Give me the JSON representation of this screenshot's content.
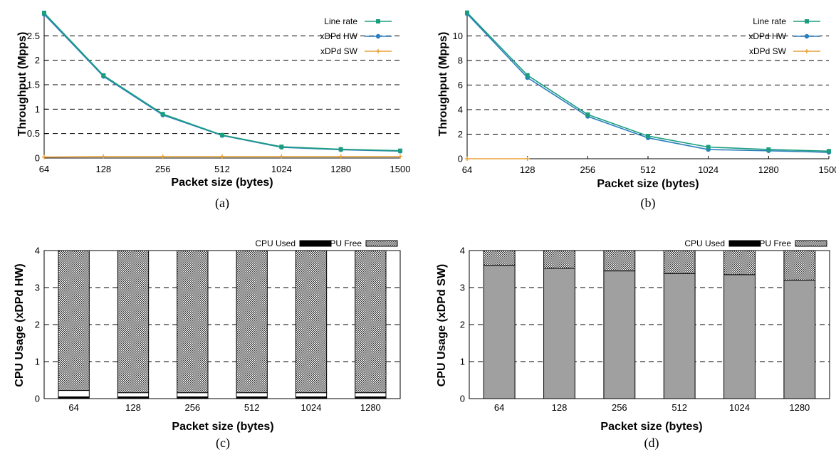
{
  "colors": {
    "line_rate": "#1a9e7e",
    "xdpd_hw": "#2a7fbf",
    "xdpd_sw": "#e8a13a",
    "cpu_used": "#a0a0a0",
    "cpu_free": "#555555",
    "grid": "#000000"
  },
  "chart_data": [
    {
      "id": "a",
      "type": "line",
      "caption": "(a)",
      "xlabel": "Packet size (bytes)",
      "ylabel": "Throughput (Mpps)",
      "categories": [
        "64",
        "128",
        "256",
        "512",
        "1024",
        "1280",
        "1500"
      ],
      "ylim": [
        0,
        3
      ],
      "yticks": [
        "0",
        "0.5",
        "1",
        "1.5",
        "2",
        "2.5"
      ],
      "ytick_values": [
        0,
        0.5,
        1,
        1.5,
        2,
        2.5
      ],
      "grid": "horizontal dashed",
      "legend_position": "top-right",
      "series": [
        {
          "name": "Line rate",
          "color_key": "line_rate",
          "marker": "square",
          "values": [
            2.97,
            1.69,
            0.9,
            0.47,
            0.23,
            0.18,
            0.15
          ]
        },
        {
          "name": "xDPd HW",
          "color_key": "xdpd_hw",
          "marker": "circle",
          "values": [
            2.94,
            1.67,
            0.88,
            0.46,
            0.22,
            0.17,
            0.14
          ]
        },
        {
          "name": "xDPd SW",
          "color_key": "xdpd_sw",
          "marker": "plus",
          "values": [
            0.02,
            0.03,
            0.03,
            0.03,
            0.03,
            0.03,
            0.03
          ]
        }
      ]
    },
    {
      "id": "b",
      "type": "line",
      "caption": "(b)",
      "xlabel": "Packet size (bytes)",
      "ylabel": "Throughput (Mpps)",
      "categories": [
        "64",
        "128",
        "256",
        "512",
        "1024",
        "1280",
        "1500"
      ],
      "ylim": [
        0,
        12
      ],
      "yticks": [
        "0",
        "2",
        "4",
        "6",
        "8",
        "10"
      ],
      "ytick_values": [
        0,
        2,
        4,
        6,
        8,
        10
      ],
      "grid": "horizontal dashed",
      "legend_position": "top-right",
      "series": [
        {
          "name": "Line rate",
          "color_key": "line_rate",
          "marker": "square",
          "values": [
            11.9,
            6.8,
            3.6,
            1.85,
            0.95,
            0.75,
            0.62
          ]
        },
        {
          "name": "xDPd HW",
          "color_key": "xdpd_hw",
          "marker": "circle",
          "values": [
            11.8,
            6.6,
            3.45,
            1.7,
            0.75,
            0.65,
            0.52
          ]
        },
        {
          "name": "xDPd SW",
          "color_key": "xdpd_sw",
          "marker": "plus",
          "values": [
            0.0,
            0.0,
            null,
            null,
            null,
            null,
            null
          ]
        }
      ]
    },
    {
      "id": "c",
      "type": "bar",
      "stacked": true,
      "caption": "(c)",
      "xlabel": "Packet size (bytes)",
      "ylabel": "CPU Usage (xDPd HW)",
      "categories": [
        "64",
        "128",
        "256",
        "512",
        "1024",
        "1280"
      ],
      "ylim": [
        0,
        4
      ],
      "yticks": [
        "0",
        "1",
        "2",
        "3",
        "4"
      ],
      "ytick_values": [
        0,
        1,
        2,
        3,
        4
      ],
      "grid": "horizontal dashed",
      "legend_position": "top-right",
      "series": [
        {
          "name": "CPU Used",
          "color_key": "cpu_used",
          "values": [
            0.22,
            0.16,
            0.16,
            0.16,
            0.16,
            0.16
          ]
        },
        {
          "name": "CPU Free",
          "color_key": "cpu_free",
          "values": [
            3.78,
            3.84,
            3.84,
            3.84,
            3.84,
            3.84
          ]
        }
      ]
    },
    {
      "id": "d",
      "type": "bar",
      "stacked": true,
      "caption": "(d)",
      "xlabel": "Packet size (bytes)",
      "ylabel": "CPU Usage (xDPd SW)",
      "categories": [
        "64",
        "128",
        "256",
        "512",
        "1024",
        "1280"
      ],
      "ylim": [
        0,
        4
      ],
      "yticks": [
        "0",
        "1",
        "2",
        "3",
        "4"
      ],
      "ytick_values": [
        0,
        1,
        2,
        3,
        4
      ],
      "grid": "horizontal dashed",
      "legend_position": "top-right",
      "series": [
        {
          "name": "CPU Used",
          "color_key": "cpu_used",
          "values": [
            3.6,
            3.52,
            3.45,
            3.38,
            3.35,
            3.2
          ]
        },
        {
          "name": "CPU Free",
          "color_key": "cpu_free",
          "values": [
            0.4,
            0.48,
            0.55,
            0.62,
            0.65,
            0.8
          ]
        }
      ]
    }
  ]
}
